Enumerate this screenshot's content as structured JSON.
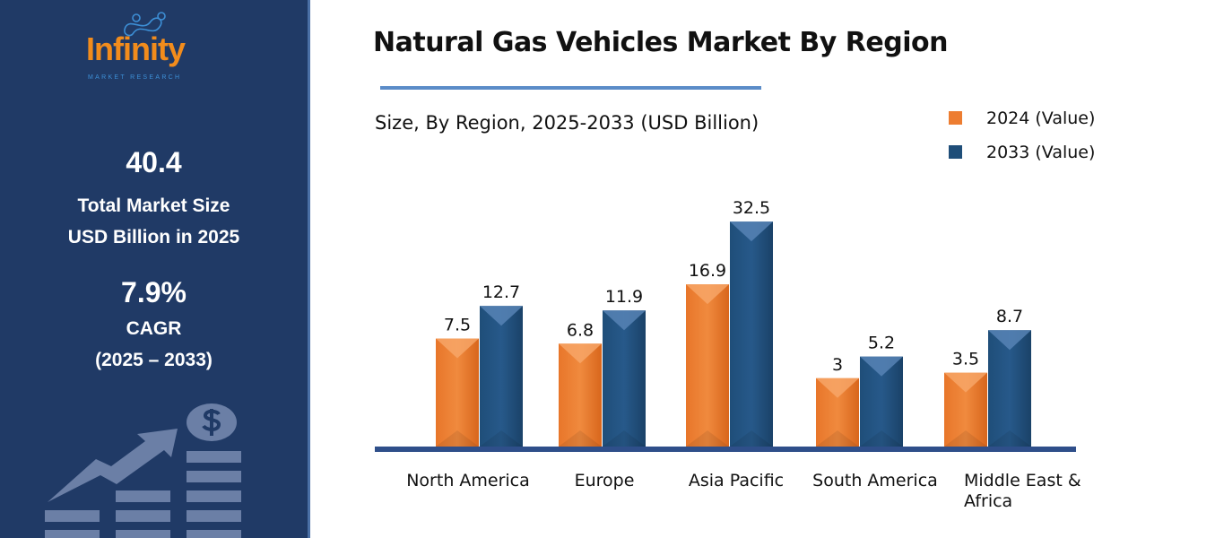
{
  "logo": {
    "text": "Infinity",
    "subtext": "MARKET RESEARCH"
  },
  "sidebar": {
    "market_size": "40.4",
    "market_size_label1": "Total Market Size",
    "market_size_label2": "USD Billion in 2025",
    "cagr": "7.9%",
    "cagr_label": "CAGR",
    "cagr_period": "(2025 – 2033)",
    "illustration": "growth-chart-dollar-icon"
  },
  "colors": {
    "sidebar": "#203a66",
    "series_2024": "#ed7d31",
    "series_2033": "#1f4e79",
    "axis": "#2f4f8a"
  },
  "chart_data": {
    "type": "bar",
    "title": "Natural Gas Vehicles Market By Region",
    "subtitle": "Size, By Region, 2025-2033 (USD Billion)",
    "categories": [
      "North America",
      "Europe",
      "Asia Pacific",
      "South America",
      "Middle East & Africa"
    ],
    "series": [
      {
        "name": "2024 (Value)",
        "values": [
          7.5,
          6.8,
          16.9,
          3,
          3.5
        ]
      },
      {
        "name": "2033 (Value)",
        "values": [
          12.7,
          11.9,
          32.5,
          5.2,
          8.7
        ]
      }
    ],
    "legend": "top-right",
    "grid": false
  }
}
